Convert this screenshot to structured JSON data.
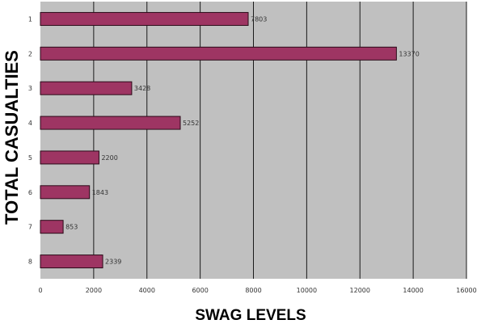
{
  "chart_data": {
    "type": "bar",
    "orientation": "horizontal",
    "categories": [
      "1",
      "2",
      "3",
      "4",
      "5",
      "6",
      "7",
      "8"
    ],
    "values": [
      7803,
      13370,
      3428,
      5252,
      2200,
      1843,
      853,
      2339
    ],
    "value_labels": [
      "7803",
      "13370",
      "3428",
      "5252",
      "2200",
      "1843",
      "853",
      "2339"
    ],
    "xlabel": "SWAG LEVELS",
    "ylabel": "TOTAL CASUALTIES",
    "xlim": [
      0,
      16000
    ],
    "x_ticks": [
      "0",
      "2000",
      "4000",
      "6000",
      "8000",
      "10000",
      "12000",
      "14000",
      "16000"
    ],
    "grid": true,
    "legend": "none",
    "colors": {
      "bar_fill": "#9e3563",
      "bar_stroke": "#2b0a18",
      "plot_background": "#c0c0c0",
      "gridline": "#1a1a1a"
    }
  }
}
